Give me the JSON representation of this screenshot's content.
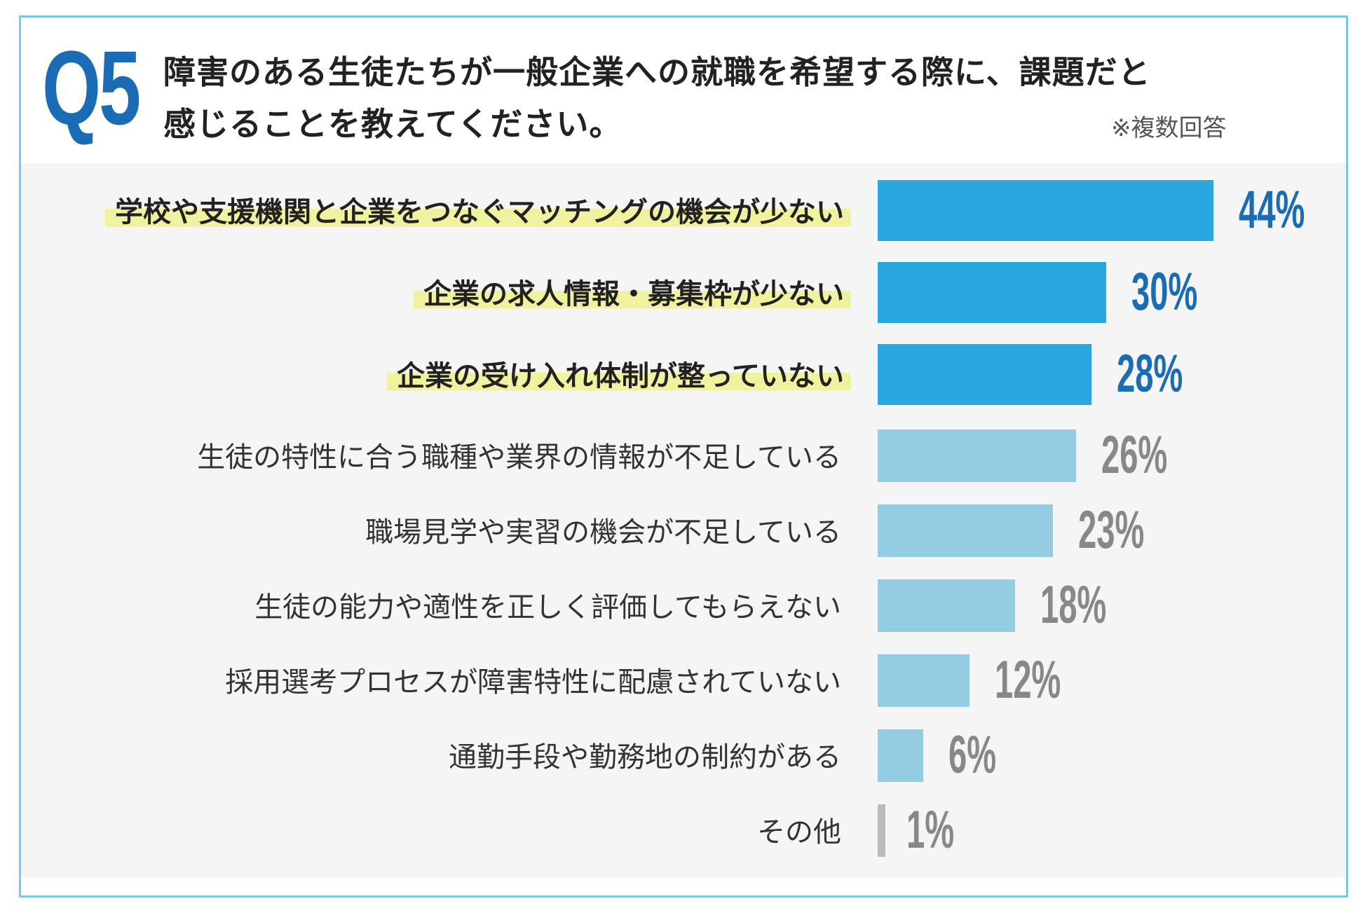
{
  "header": {
    "question_number": "Q5",
    "title_line1": "障害のある生徒たちが一般企業への就職を希望する際に、課題だと",
    "title_line2": "感じることを教えてください。",
    "note": "※複数回答"
  },
  "colors": {
    "frame": "#7cc9e6",
    "highlight_bar": "#29a8e0",
    "normal_bar": "#94cce3",
    "other_bar": "#bbbbbb",
    "highlight_pct": "#1a6db5",
    "normal_pct": "#888888",
    "label_highlight": "#f1f2a0"
  },
  "chart_data": {
    "type": "bar",
    "orientation": "horizontal",
    "title": "障害のある生徒たちが一般企業への就職を希望する際に、課題だと感じることを教えてください。",
    "xlabel": "",
    "ylabel": "",
    "unit": "%",
    "xlim": [
      0,
      44
    ],
    "grid": false,
    "categories": [
      "学校や支援機関と企業をつなぐマッチングの機会が少ない",
      "企業の求人情報・募集枠が少ない",
      "企業の受け入れ体制が整っていない",
      "生徒の特性に合う職種や業界の情報が不足している",
      "職場見学や実習の機会が不足している",
      "生徒の能力や適性を正しく評価してもらえない",
      "採用選考プロセスが障害特性に配慮されていない",
      "通勤手段や勤務地の制約がある",
      "その他"
    ],
    "values": [
      44,
      30,
      28,
      26,
      23,
      18,
      12,
      6,
      1
    ],
    "value_labels": [
      "44%",
      "30%",
      "28%",
      "26%",
      "23%",
      "18%",
      "12%",
      "6%",
      "1%"
    ],
    "highlighted": [
      true,
      true,
      true,
      false,
      false,
      false,
      false,
      false,
      false
    ]
  }
}
